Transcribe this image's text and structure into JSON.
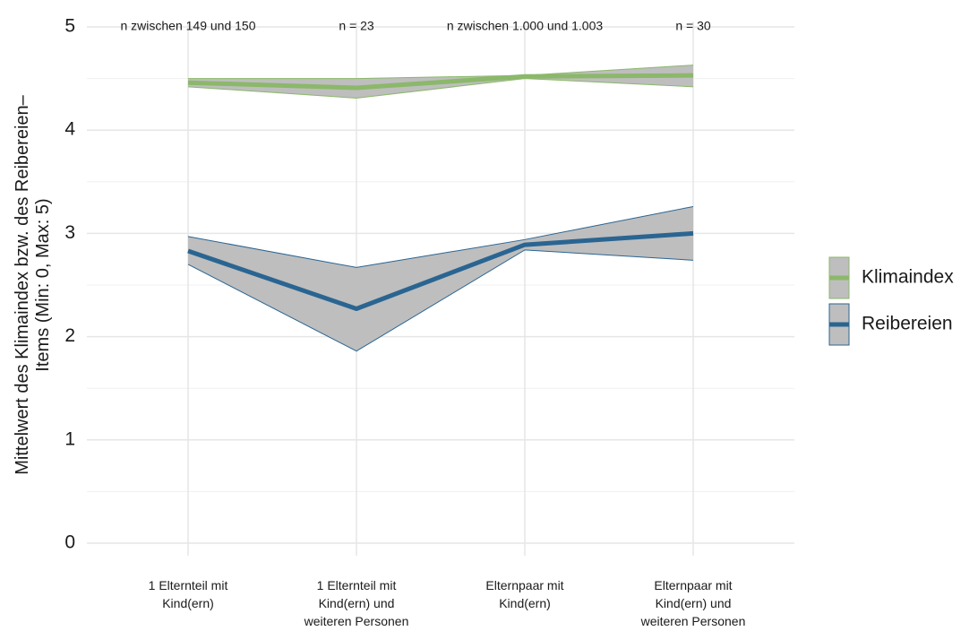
{
  "chart_data": {
    "type": "ribbon-line",
    "ylabel": [
      "Mittelwert des Klimaindex bzw. des Reibereien–",
      "Items (Min: 0, Max: 5)"
    ],
    "categories": [
      [
        "1 Elternteil mit",
        "Kind(ern)"
      ],
      [
        "1 Elternteil mit",
        "Kind(ern) und",
        "weiteren Personen"
      ],
      [
        "Elternpaar mit",
        "Kind(ern)"
      ],
      [
        "Elternpaar mit",
        "Kind(ern) und",
        "weiteren Personen"
      ]
    ],
    "annotations": [
      "n zwischen 149 und 150",
      "n = 23",
      "n zwischen 1.000 und 1.003",
      "n = 30"
    ],
    "series": [
      {
        "name": "Klimaindex",
        "color": "#8bb86a",
        "values": [
          4.46,
          4.41,
          4.52,
          4.53
        ],
        "lower": [
          4.42,
          4.31,
          4.5,
          4.42
        ],
        "upper": [
          4.5,
          4.5,
          4.53,
          4.63
        ]
      },
      {
        "name": "Reibereien",
        "color": "#2a6592",
        "values": [
          2.83,
          2.27,
          2.89,
          3.0
        ],
        "lower": [
          2.7,
          1.86,
          2.84,
          2.74
        ],
        "upper": [
          2.97,
          2.67,
          2.94,
          3.26
        ]
      }
    ],
    "ribbon_color": "#bebebe",
    "ylim": [
      -0.12,
      5.05
    ],
    "yticks": [
      0,
      1,
      2,
      3,
      4,
      5
    ],
    "grid": true,
    "minor_grid": true,
    "legend": "right"
  }
}
